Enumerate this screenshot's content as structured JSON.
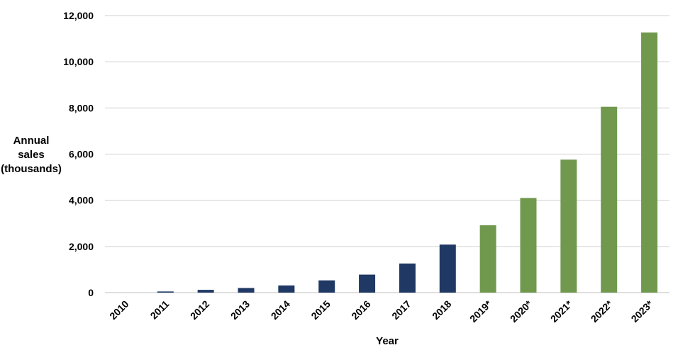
{
  "chart_data": {
    "type": "bar",
    "title": "",
    "xlabel": "Year",
    "ylabel": [
      "Annual",
      "sales",
      "(thousands)"
    ],
    "ylim": [
      0,
      12000
    ],
    "yticks": [
      0,
      2000,
      4000,
      6000,
      8000,
      10000,
      12000
    ],
    "ytick_labels": [
      "0",
      "2,000",
      "4,000",
      "6,000",
      "8,000",
      "10,000",
      "12,000"
    ],
    "grid": true,
    "categories": [
      "2010",
      "2011",
      "2012",
      "2013",
      "2014",
      "2015",
      "2016",
      "2017",
      "2018",
      "2019*",
      "2020*",
      "2021*",
      "2022*",
      "2023*"
    ],
    "values": [
      0,
      50,
      120,
      200,
      310,
      530,
      780,
      1260,
      2080,
      2920,
      4100,
      5760,
      8050,
      11270
    ],
    "bar_colors": [
      "#1f3864",
      "#1f3864",
      "#1f3864",
      "#1f3864",
      "#1f3864",
      "#1f3864",
      "#1f3864",
      "#1f3864",
      "#1f3864",
      "#70994e",
      "#70994e",
      "#70994e",
      "#70994e",
      "#70994e"
    ]
  }
}
